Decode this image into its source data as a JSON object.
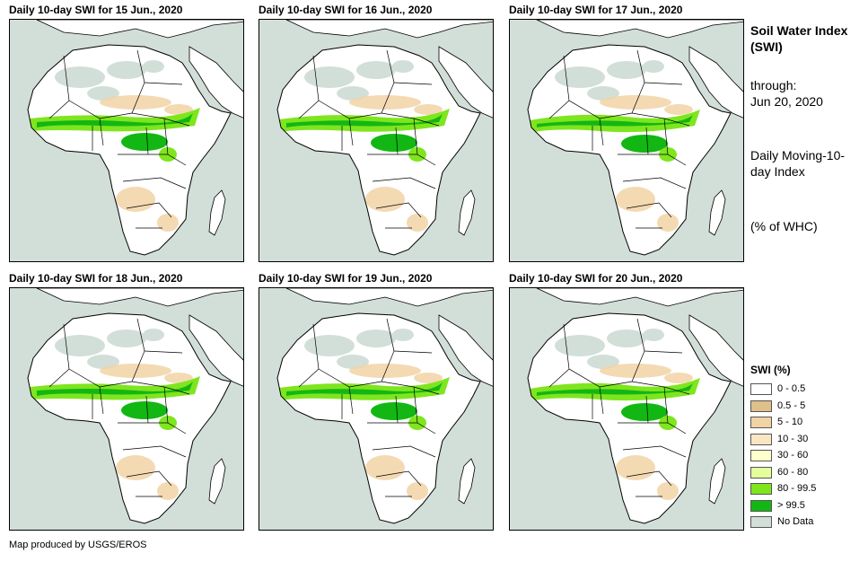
{
  "panels": [
    {
      "title": "Daily 10-day SWI for 15 Jun., 2020"
    },
    {
      "title": "Daily 10-day SWI for 16 Jun., 2020"
    },
    {
      "title": "Daily 10-day SWI for 17 Jun., 2020"
    },
    {
      "title": "Daily 10-day SWI for 18 Jun., 2020"
    },
    {
      "title": "Daily 10-day SWI for 19 Jun., 2020"
    },
    {
      "title": "Daily 10-day SWI for 20 Jun., 2020"
    }
  ],
  "side": {
    "title": "Soil Water Index (SWI)",
    "through_label": "through:",
    "through_date": "Jun 20, 2020",
    "index_desc": "Daily Moving-10-day Index",
    "units": "(% of WHC)"
  },
  "legend": {
    "title": "SWI (%)",
    "items": [
      {
        "label": "0 - 0.5",
        "color": "#ffffff"
      },
      {
        "label": "0.5 - 5",
        "color": "#dfbf8a"
      },
      {
        "label": "5 - 10",
        "color": "#f1d3a6"
      },
      {
        "label": "10 - 30",
        "color": "#fbe6c3"
      },
      {
        "label": "30 - 60",
        "color": "#ffffcc"
      },
      {
        "label": "60 - 80",
        "color": "#e5ff9c"
      },
      {
        "label": "80 - 99.5",
        "color": "#7fe51e"
      },
      {
        "label": "> 99.5",
        "color": "#13b713"
      },
      {
        "label": "No Data",
        "color": "#d2dfd9"
      }
    ]
  },
  "colors": {
    "sea": "#d2dfd9",
    "land": "#ffffff",
    "desert_nodata": "#d2dfd9",
    "dry": "#f1d3a6",
    "wet": "#7fe51e",
    "saturated": "#13b713"
  },
  "footer": "Map produced by USGS/EROS"
}
